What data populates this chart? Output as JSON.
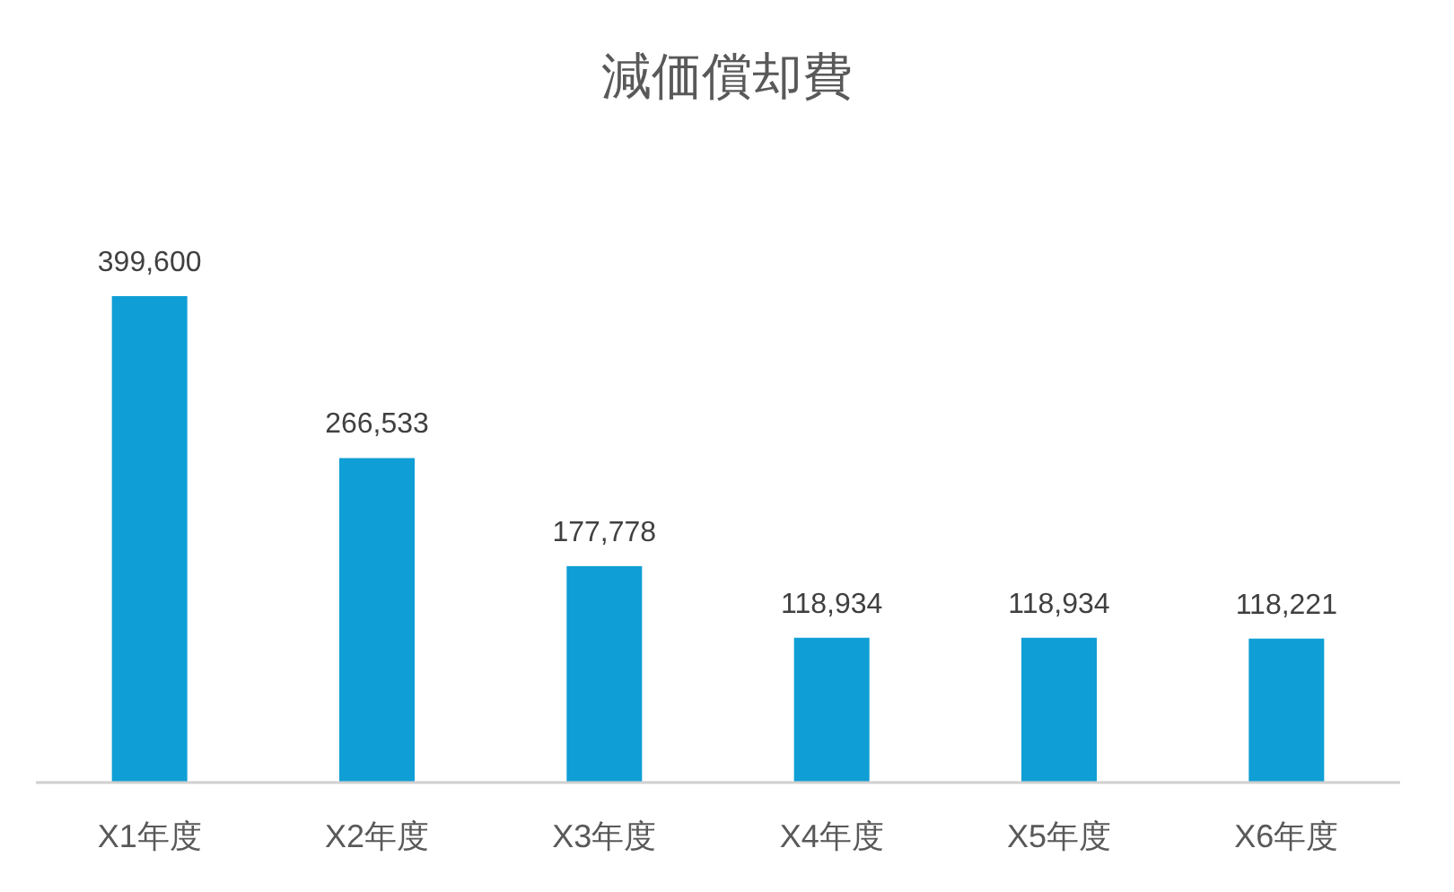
{
  "chart_data": {
    "type": "bar",
    "title": "減価償却費",
    "categories": [
      "X1年度",
      "X2年度",
      "X3年度",
      "X4年度",
      "X5年度",
      "X6年度"
    ],
    "values": [
      399600,
      266533,
      177778,
      118934,
      118934,
      118221
    ],
    "value_labels": [
      "399,600",
      "266,533",
      "177,778",
      "118,934",
      "118,934",
      "118,221"
    ],
    "color": "#0f9ed5"
  }
}
